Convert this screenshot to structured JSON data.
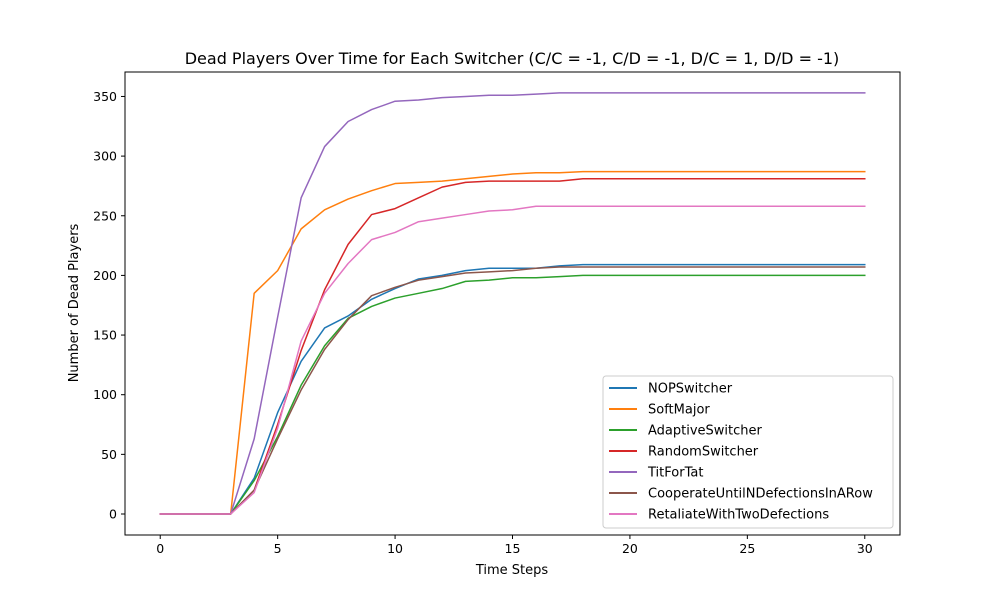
{
  "chart_data": {
    "type": "line",
    "title": "Dead Players Over Time for Each Switcher (C/C = -1, C/D = -1, D/C = 1, D/D = -1)",
    "xlabel": "Time Steps",
    "ylabel": "Number of Dead Players",
    "xlim": [
      -1.5,
      31.5
    ],
    "ylim": [
      -17.6,
      370.5
    ],
    "xticks": [
      0,
      5,
      10,
      15,
      20,
      25,
      30
    ],
    "yticks": [
      0,
      50,
      100,
      150,
      200,
      250,
      300,
      350
    ],
    "grid": false,
    "legend_position": "lower-right",
    "x": [
      0,
      1,
      2,
      3,
      4,
      5,
      6,
      7,
      8,
      9,
      10,
      11,
      12,
      13,
      14,
      15,
      16,
      17,
      18,
      19,
      20,
      21,
      22,
      23,
      24,
      25,
      26,
      27,
      28,
      29,
      30
    ],
    "series": [
      {
        "name": "NOPSwitcher",
        "color": "#1f77b4",
        "values": [
          0,
          0,
          0,
          0,
          30,
          85,
          128,
          156,
          166,
          180,
          189,
          197,
          200,
          204,
          206,
          206,
          206,
          208,
          209,
          209,
          209,
          209,
          209,
          209,
          209,
          209,
          209,
          209,
          209,
          209,
          209
        ]
      },
      {
        "name": "SoftMajor",
        "color": "#ff7f0e",
        "values": [
          0,
          0,
          0,
          0,
          185,
          204,
          239,
          255,
          264,
          271,
          277,
          278,
          279,
          281,
          283,
          285,
          286,
          286,
          287,
          287,
          287,
          287,
          287,
          287,
          287,
          287,
          287,
          287,
          287,
          287,
          287
        ]
      },
      {
        "name": "AdaptiveSwitcher",
        "color": "#2ca02c",
        "values": [
          0,
          0,
          0,
          0,
          28,
          65,
          108,
          141,
          164,
          174,
          181,
          185,
          189,
          195,
          196,
          198,
          198,
          199,
          200,
          200,
          200,
          200,
          200,
          200,
          200,
          200,
          200,
          200,
          200,
          200,
          200
        ]
      },
      {
        "name": "RandomSwitcher",
        "color": "#d62728",
        "values": [
          0,
          0,
          0,
          0,
          20,
          75,
          137,
          188,
          226,
          251,
          256,
          265,
          274,
          278,
          279,
          279,
          279,
          279,
          281,
          281,
          281,
          281,
          281,
          281,
          281,
          281,
          281,
          281,
          281,
          281,
          281
        ]
      },
      {
        "name": "TitForTat",
        "color": "#9467bd",
        "values": [
          0,
          0,
          0,
          0,
          63,
          165,
          265,
          308,
          329,
          339,
          346,
          347,
          349,
          350,
          351,
          351,
          352,
          353,
          353,
          353,
          353,
          353,
          353,
          353,
          353,
          353,
          353,
          353,
          353,
          353,
          353
        ]
      },
      {
        "name": "CooperateUntilNDefectionsInARow",
        "color": "#8c564b",
        "values": [
          0,
          0,
          0,
          0,
          20,
          63,
          104,
          138,
          163,
          183,
          190,
          196,
          199,
          202,
          203,
          204,
          206,
          207,
          207,
          207,
          207,
          207,
          207,
          207,
          207,
          207,
          207,
          207,
          207,
          207,
          207
        ]
      },
      {
        "name": "RetaliateWithTwoDefections",
        "color": "#e377c2",
        "values": [
          0,
          0,
          0,
          0,
          18,
          72,
          145,
          185,
          210,
          230,
          236,
          245,
          248,
          251,
          254,
          255,
          258,
          258,
          258,
          258,
          258,
          258,
          258,
          258,
          258,
          258,
          258,
          258,
          258,
          258,
          258
        ]
      }
    ]
  }
}
